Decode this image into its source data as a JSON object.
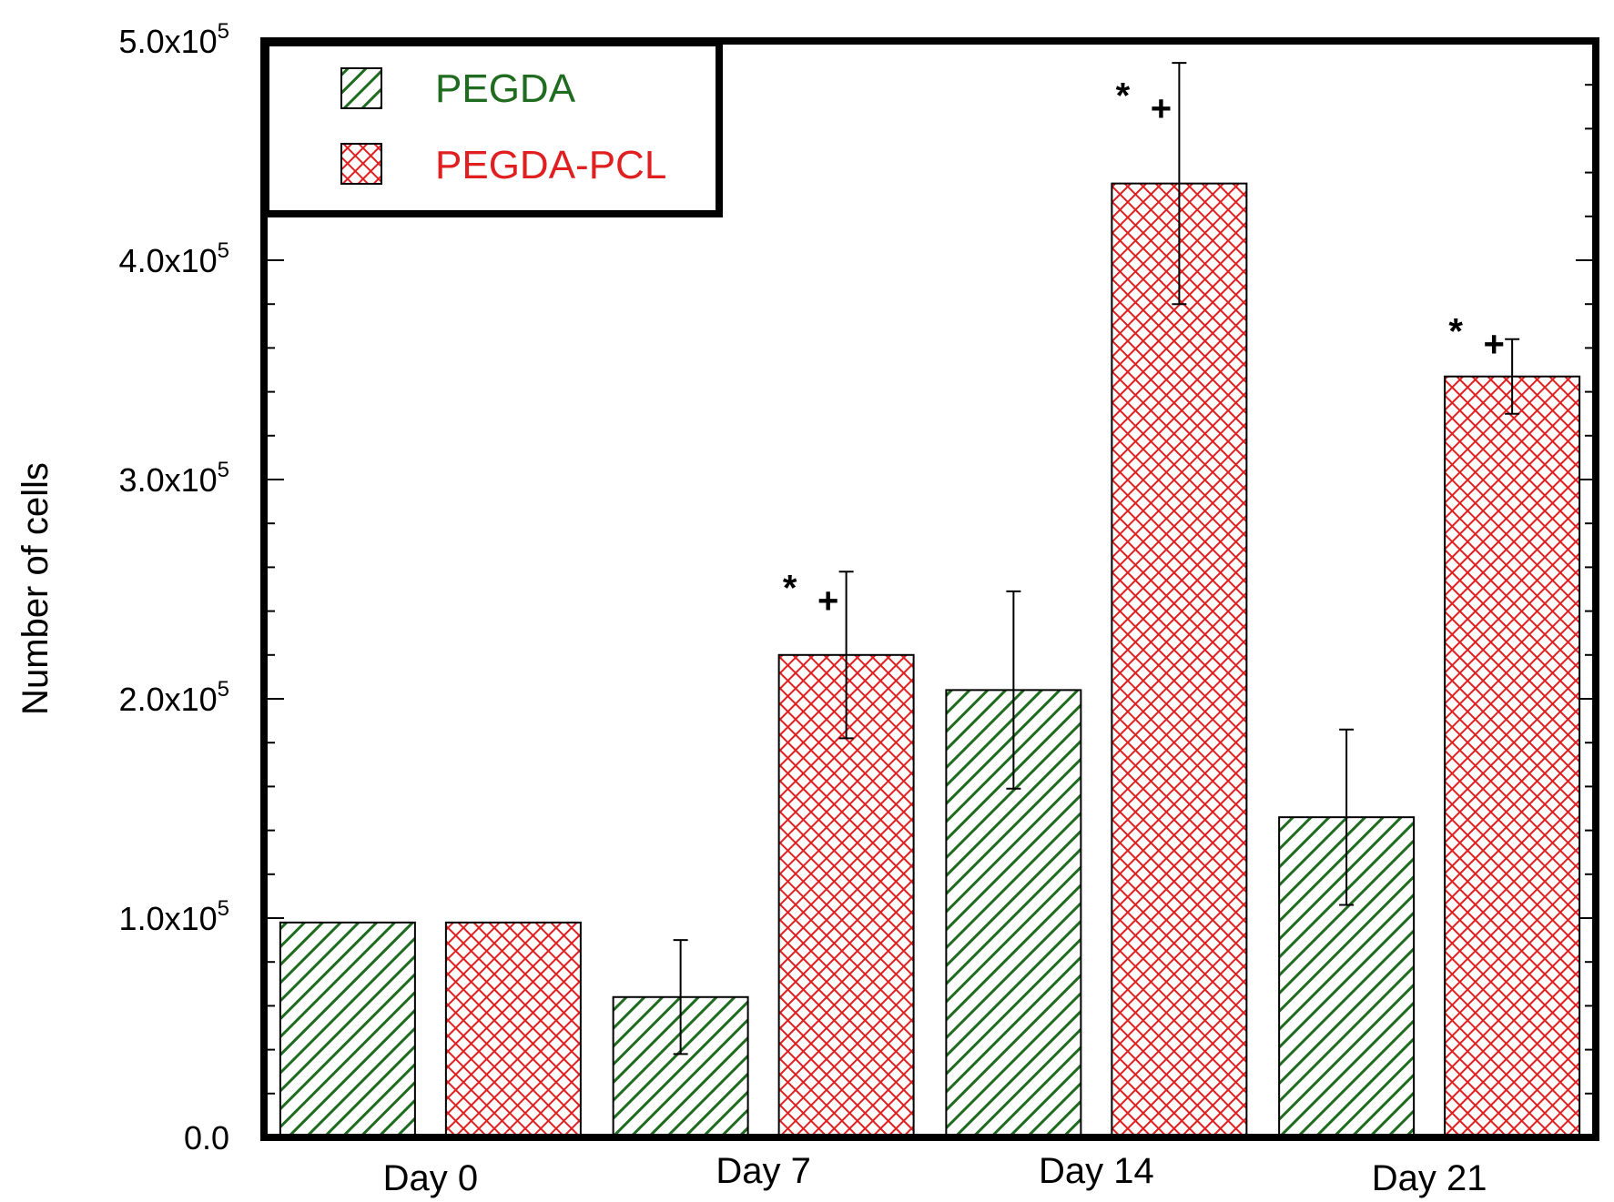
{
  "chart_data": {
    "type": "bar",
    "title": "",
    "xlabel": "",
    "ylabel": "Number of cells",
    "ylim": [
      0,
      500000
    ],
    "yticks": [
      {
        "value": 0,
        "label": "0.0",
        "exp": ""
      },
      {
        "value": 100000,
        "label": "1.0x10",
        "exp": "5"
      },
      {
        "value": 200000,
        "label": "2.0x10",
        "exp": "5"
      },
      {
        "value": 300000,
        "label": "3.0x10",
        "exp": "5"
      },
      {
        "value": 400000,
        "label": "4.0x10",
        "exp": "5"
      },
      {
        "value": 500000,
        "label": "5.0x10",
        "exp": "5"
      }
    ],
    "categories": [
      "Day 0",
      "Day 7",
      "Day 14",
      "Day 21"
    ],
    "legend_position": "top-left",
    "series": [
      {
        "name": "PEGDA",
        "color": "#1f6b1f",
        "pattern": "diagonal",
        "values": [
          98000,
          64000,
          204000,
          146000
        ],
        "errors": [
          0,
          26000,
          45000,
          40000
        ]
      },
      {
        "name": "PEGDA-PCL",
        "color": "#e02020",
        "pattern": "crosshatch",
        "values": [
          98000,
          220000,
          435000,
          347000
        ],
        "errors": [
          0,
          38000,
          55000,
          17000
        ]
      }
    ],
    "significance": [
      {
        "category": "Day 7",
        "series": "PEGDA-PCL",
        "marks": [
          "*",
          "+"
        ]
      },
      {
        "category": "Day 14",
        "series": "PEGDA-PCL",
        "marks": [
          "*",
          "+"
        ]
      },
      {
        "category": "Day 21",
        "series": "PEGDA-PCL",
        "marks": [
          "*",
          "+"
        ]
      }
    ]
  }
}
